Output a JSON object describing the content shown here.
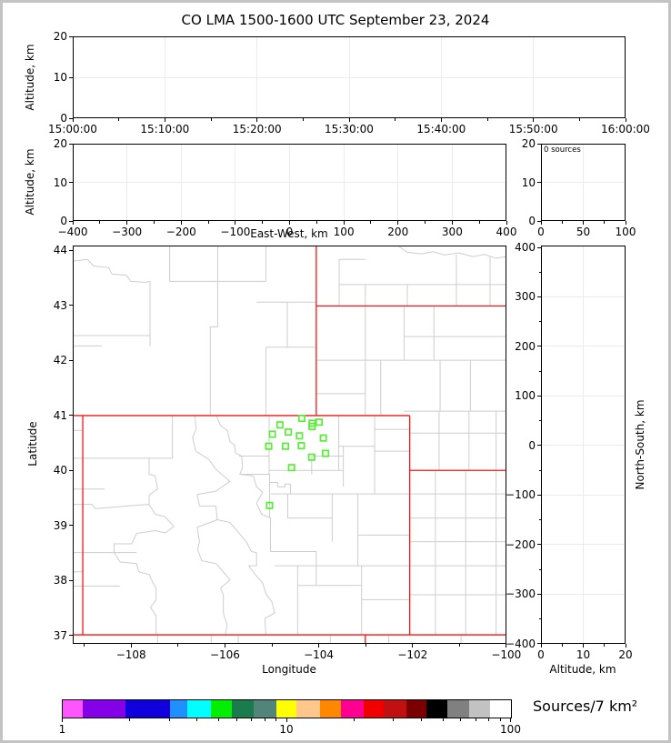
{
  "title": "CO LMA 1500-1600 UTC September 23, 2024",
  "colors": {
    "state_border": "#f71414",
    "county_line": "#cdcdcd",
    "station_marker": "#55ee33",
    "gridline": "#ebebeb",
    "axis": "#000000",
    "background": "#ffffff",
    "frame": "#c3c3c3"
  },
  "panels": {
    "time_height": {
      "ylabel": "Altitude, km",
      "ytick_labels": [
        "20",
        "10",
        "0"
      ],
      "xtick_labels": [
        "15:00:00",
        "15:10:00",
        "15:20:00",
        "15:30:00",
        "15:40:00",
        "15:50:00",
        "16:00:00"
      ]
    },
    "ew_height": {
      "ylabel": "Altitude, km",
      "xlabel": "East-West, km",
      "ytick_labels": [
        "20",
        "10",
        "0"
      ],
      "xtick_labels": [
        "−400",
        "−300",
        "−200",
        "−100",
        "0",
        "100",
        "200",
        "300",
        "400"
      ]
    },
    "alt_histogram": {
      "annotation": "0 sources",
      "ytick_labels": [
        "20",
        "10",
        "0"
      ],
      "xtick_labels": [
        "0",
        "50",
        "100"
      ]
    },
    "plan_view": {
      "xlabel": "Longitude",
      "ylabel": "Latitude",
      "ytick_labels": [
        "44",
        "43",
        "42",
        "41",
        "40",
        "39",
        "38",
        "37"
      ],
      "xtick_labels": [
        "−108",
        "−106",
        "−104",
        "−102",
        "−100"
      ]
    },
    "ns_height": {
      "xlabel": "Altitude, km",
      "ylabel": "North-South, km",
      "ytick_labels": [
        "400",
        "300",
        "200",
        "100",
        "0",
        "−100",
        "−200",
        "−300",
        "−400"
      ],
      "xtick_labels": [
        "0",
        "10",
        "20"
      ]
    }
  },
  "colorbar": {
    "label": "Sources/7 km²",
    "scale": "log",
    "range": [
      1,
      100
    ],
    "tick_labels": [
      "1",
      "10",
      "100"
    ],
    "tick_values": [
      1,
      10,
      100
    ],
    "minor_tick_values": [
      2,
      3,
      4,
      5,
      6,
      7,
      8,
      9,
      20,
      30,
      40,
      50,
      60,
      70,
      80,
      90
    ],
    "stops": [
      1,
      1.23,
      1.9,
      3,
      3.6,
      4.6,
      5.7,
      7.1,
      9,
      11,
      14,
      17.5,
      22,
      27,
      34,
      42,
      52,
      65,
      81,
      100
    ],
    "colors": [
      "#ff55ff",
      "#8400e8",
      "#0f00dd",
      "#1e90ff",
      "#00ffff",
      "#00ee00",
      "#1a7b4c",
      "#52857a",
      "#ffff00",
      "#ffc88a",
      "#ff8800",
      "#ff0090",
      "#f20000",
      "#c01010",
      "#7d0000",
      "#000000",
      "#808080",
      "#c2c2c2",
      "#ffffff"
    ]
  },
  "chart_data": [
    {
      "type": "scatter",
      "panel": "time-height",
      "title": "CO LMA 1500-1600 UTC September 23, 2024",
      "ylabel": "Altitude, km",
      "xlim": [
        "15:00:00",
        "16:00:00"
      ],
      "ylim": [
        0,
        20
      ],
      "grid": true,
      "points": []
    },
    {
      "type": "scatter",
      "panel": "east-west-height",
      "xlabel": "East-West, km",
      "ylabel": "Altitude, km",
      "xlim": [
        -400,
        400
      ],
      "ylim": [
        0,
        20
      ],
      "grid": true,
      "points": []
    },
    {
      "type": "histogram",
      "panel": "altitude-source-count",
      "annotation": "0 sources",
      "xlim": [
        0,
        100
      ],
      "ylim": [
        0,
        20
      ],
      "grid": true,
      "values": []
    },
    {
      "type": "map-scatter",
      "panel": "plan-view-map",
      "xlabel": "Longitude",
      "ylabel": "Latitude",
      "xlim": [
        -109.24,
        -100.0
      ],
      "ylim": [
        36.85,
        44.09
      ],
      "grid": false,
      "points": [],
      "stations_lon_lat": [
        [
          -104.36,
          40.95
        ],
        [
          -104.14,
          40.86
        ],
        [
          -103.99,
          40.88
        ],
        [
          -104.14,
          40.8
        ],
        [
          -104.83,
          40.83
        ],
        [
          -104.99,
          40.66
        ],
        [
          -104.65,
          40.7
        ],
        [
          -104.41,
          40.63
        ],
        [
          -105.07,
          40.44
        ],
        [
          -104.71,
          40.44
        ],
        [
          -104.37,
          40.45
        ],
        [
          -103.9,
          40.59
        ],
        [
          -103.85,
          40.31
        ],
        [
          -104.15,
          40.24
        ],
        [
          -104.58,
          40.05
        ],
        [
          -105.05,
          39.36
        ]
      ],
      "state_border_lines_lon_lat": [
        [
          [
            -109.244,
            41.0
          ],
          [
            -102.05,
            41.0
          ]
        ],
        [
          [
            -109.05,
            41.0
          ],
          [
            -109.05,
            37.0
          ]
        ],
        [
          [
            -109.244,
            37.0
          ],
          [
            -100.0,
            37.0
          ]
        ],
        [
          [
            -102.05,
            41.0
          ],
          [
            -102.05,
            37.0
          ]
        ],
        [
          [
            -104.05,
            44.086
          ],
          [
            -104.05,
            41.0
          ]
        ],
        [
          [
            -104.05,
            43.0
          ],
          [
            -100.0,
            43.0
          ]
        ],
        [
          [
            -102.05,
            40.0
          ],
          [
            -100.0,
            40.0
          ]
        ],
        [
          [
            -103.0,
            37.0
          ],
          [
            -103.0,
            36.851
          ]
        ]
      ]
    },
    {
      "type": "scatter",
      "panel": "north-south-height",
      "xlabel": "Altitude, km",
      "ylabel": "North-South, km",
      "xlim": [
        0,
        20
      ],
      "ylim": [
        -400,
        400
      ],
      "grid": true,
      "points": []
    }
  ]
}
